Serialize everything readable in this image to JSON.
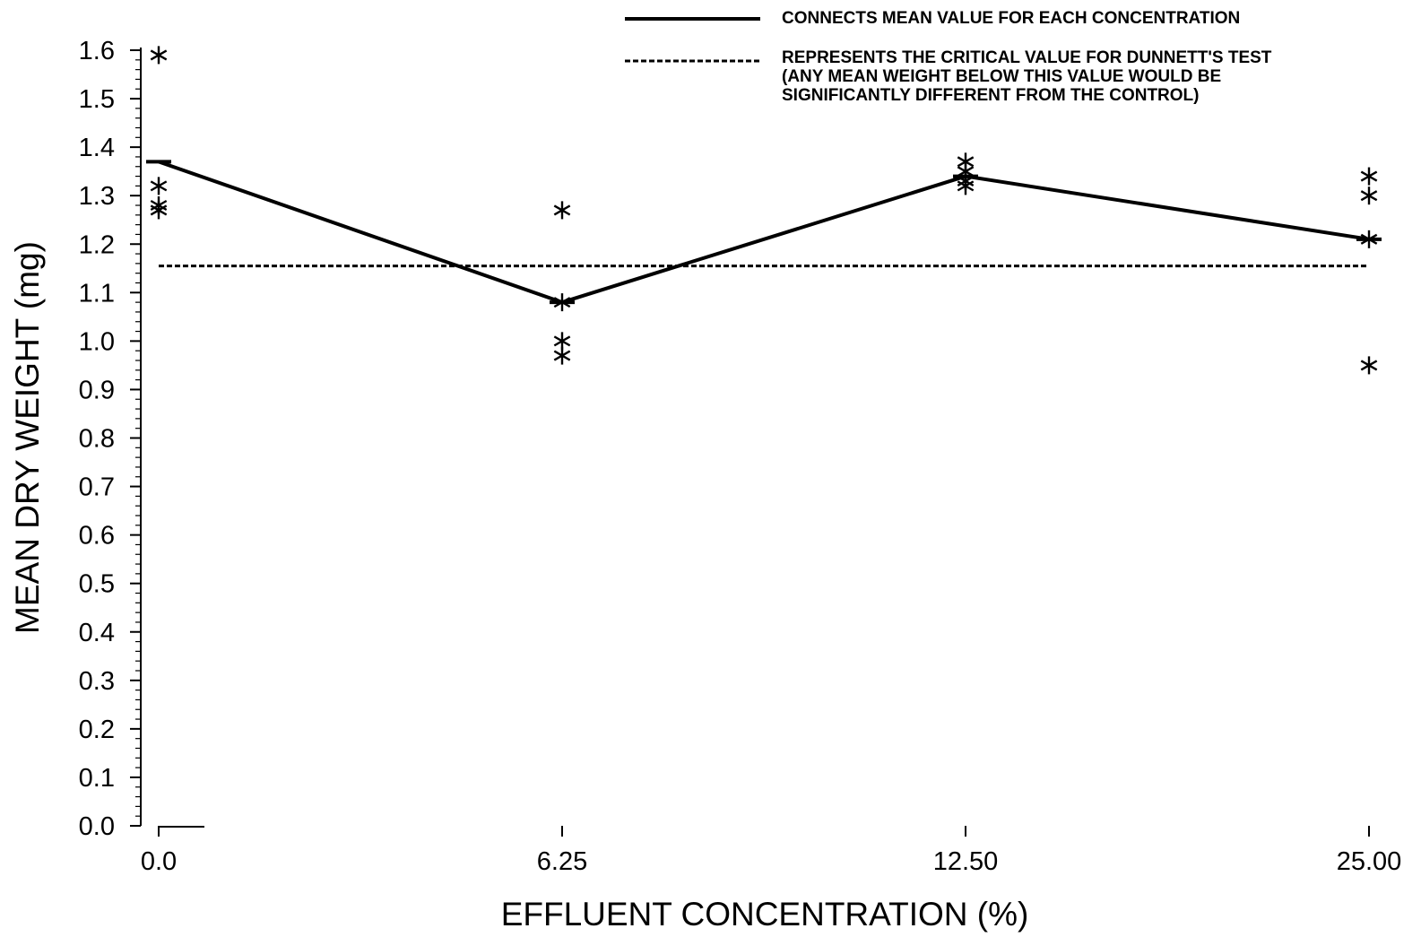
{
  "chart_data": {
    "type": "line",
    "xlabel": "EFFLUENT CONCENTRATION (%)",
    "ylabel": "MEAN DRY WEIGHT (mg)",
    "ylim": [
      0.0,
      1.6
    ],
    "categories": [
      "0.0",
      "6.25",
      "12.50",
      "25.00"
    ],
    "y_ticks": [
      "0.0",
      "0.1",
      "0.2",
      "0.3",
      "0.4",
      "0.5",
      "0.6",
      "0.7",
      "0.8",
      "0.9",
      "1.0",
      "1.1",
      "1.2",
      "1.3",
      "1.4",
      "1.5",
      "1.6"
    ],
    "grid": false,
    "legend_position": "top-right",
    "series": [
      {
        "role": "mean-line",
        "style": "solid",
        "values": [
          1.37,
          1.08,
          1.34,
          1.21
        ]
      },
      {
        "role": "critical-value",
        "style": "dashed",
        "value": 1.155
      },
      {
        "role": "replicates",
        "marker": "asterisk",
        "points": [
          {
            "category": "0.0",
            "y": 1.59
          },
          {
            "category": "0.0",
            "y": 1.32
          },
          {
            "category": "0.0",
            "y": 1.28
          },
          {
            "category": "0.0",
            "y": 1.27
          },
          {
            "category": "6.25",
            "y": 1.27
          },
          {
            "category": "6.25",
            "y": 1.08
          },
          {
            "category": "6.25",
            "y": 1.0
          },
          {
            "category": "6.25",
            "y": 0.97
          },
          {
            "category": "12.50",
            "y": 1.37
          },
          {
            "category": "12.50",
            "y": 1.35
          },
          {
            "category": "12.50",
            "y": 1.33
          },
          {
            "category": "12.50",
            "y": 1.32
          },
          {
            "category": "25.00",
            "y": 1.34
          },
          {
            "category": "25.00",
            "y": 1.3
          },
          {
            "category": "25.00",
            "y": 1.21
          },
          {
            "category": "25.00",
            "y": 0.95
          }
        ]
      }
    ],
    "legend": {
      "solid_line_text": "CONNECTS MEAN VALUE FOR EACH CONCENTRATION",
      "dashed_line_text": [
        "REPRESENTS THE CRITICAL VALUE FOR DUNNETT'S TEST",
        "(ANY MEAN WEIGHT BELOW THIS VALUE WOULD BE",
        "SIGNIFICANTLY DIFFERENT FROM THE CONTROL)"
      ]
    },
    "colors": {
      "ink": "#000000",
      "background": "#ffffff"
    }
  }
}
